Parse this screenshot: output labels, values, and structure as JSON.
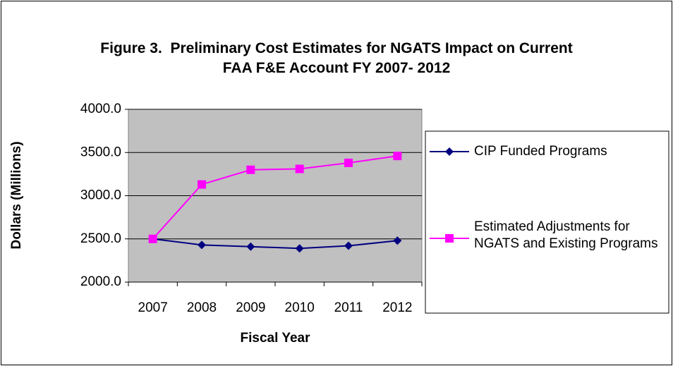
{
  "chart_data": {
    "type": "line",
    "title": "Figure 3.  Preliminary Cost Estimates for NGATS Impact on Current FAA F&E Account FY 2007- 2012",
    "x_label": "Fiscal Year",
    "y_label": "Dollars (Millions)",
    "categories": [
      "2007",
      "2008",
      "2009",
      "2010",
      "2011",
      "2012"
    ],
    "series": [
      {
        "name": "CIP Funded Programs",
        "color": "#000080",
        "marker": "diamond",
        "values": [
          2500,
          2430,
          2410,
          2390,
          2420,
          2480
        ]
      },
      {
        "name": "Estimated Adjustments for NGATS and Existing Programs",
        "color": "#ff00ff",
        "marker": "square",
        "values": [
          2500,
          3130,
          3300,
          3310,
          3380,
          3460
        ]
      }
    ],
    "ylim": [
      2000,
      4000
    ],
    "yticks": [
      {
        "value": 2000,
        "label": "2000.0"
      },
      {
        "value": 2500,
        "label": "2500.0"
      },
      {
        "value": 3000,
        "label": "3000.0"
      },
      {
        "value": 3500,
        "label": "3500.0"
      },
      {
        "value": 4000,
        "label": "4000.0"
      }
    ],
    "grid": true,
    "legend": "right"
  }
}
